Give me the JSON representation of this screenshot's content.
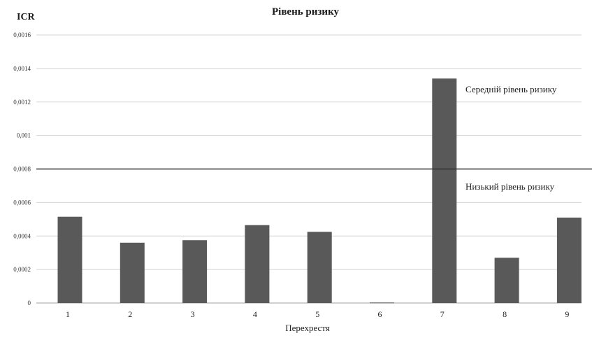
{
  "chart_data": {
    "type": "bar",
    "title": "Рівень ризику",
    "ylabel": "ICR",
    "xlabel": "Перехрестя",
    "categories": [
      "1",
      "2",
      "3",
      "4",
      "5",
      "6",
      "7",
      "8",
      "9"
    ],
    "values": [
      0.000515,
      0.00036,
      0.000375,
      0.000465,
      0.000425,
      3e-06,
      0.00134,
      0.00027,
      0.00051
    ],
    "ylim": [
      0,
      0.0016
    ],
    "yticks": [
      "0",
      "0,0002",
      "0,0004",
      "0,0006",
      "0,0008",
      "0,001",
      "0,0012",
      "0,0014",
      "0,0016"
    ],
    "grid": true,
    "bar_color": "#595959",
    "threshold": {
      "value": 0.0008,
      "color": "#333333",
      "label_above": "Середній рівень ризику",
      "label_below": "Низький рівень ризику"
    }
  }
}
